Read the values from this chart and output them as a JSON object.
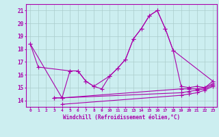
{
  "xlabel": "Windchill (Refroidissement éolien,°C)",
  "background_color": "#cceef0",
  "grid_color": "#aacccc",
  "line_color": "#aa00aa",
  "x": [
    0,
    1,
    2,
    3,
    4,
    5,
    6,
    7,
    8,
    9,
    10,
    11,
    12,
    13,
    14,
    15,
    16,
    17,
    18,
    19,
    20,
    21,
    22,
    23
  ],
  "series1": [
    18.4,
    16.6,
    null,
    null,
    null,
    16.3,
    16.3,
    15.5,
    15.1,
    null,
    15.9,
    16.5,
    17.2,
    18.8,
    19.6,
    20.6,
    21.0,
    19.6,
    17.9,
    null,
    null,
    null,
    null,
    15.5
  ],
  "series2": [
    18.4,
    null,
    null,
    null,
    14.2,
    16.3,
    16.3,
    15.5,
    15.1,
    14.9,
    15.9,
    16.5,
    17.2,
    18.8,
    19.6,
    20.6,
    21.0,
    19.6,
    17.9,
    15.1,
    15.0,
    15.1,
    15.0,
    15.5
  ],
  "series3": [
    null,
    null,
    null,
    14.2,
    14.2,
    null,
    null,
    null,
    null,
    null,
    null,
    null,
    null,
    null,
    null,
    null,
    null,
    null,
    null,
    14.9,
    14.9,
    14.9,
    15.0,
    15.3
  ],
  "series4": [
    null,
    null,
    null,
    14.2,
    14.2,
    null,
    null,
    null,
    null,
    null,
    null,
    null,
    null,
    null,
    null,
    null,
    null,
    null,
    null,
    14.6,
    14.7,
    14.8,
    14.9,
    15.2
  ],
  "series5": [
    null,
    null,
    null,
    null,
    13.7,
    null,
    null,
    null,
    null,
    null,
    null,
    null,
    null,
    null,
    null,
    null,
    null,
    null,
    null,
    14.4,
    14.5,
    14.6,
    14.8,
    15.1
  ],
  "ylim": [
    13.5,
    21.5
  ],
  "yticks": [
    14,
    15,
    16,
    17,
    18,
    19,
    20,
    21
  ],
  "xlim": [
    -0.5,
    23.5
  ]
}
